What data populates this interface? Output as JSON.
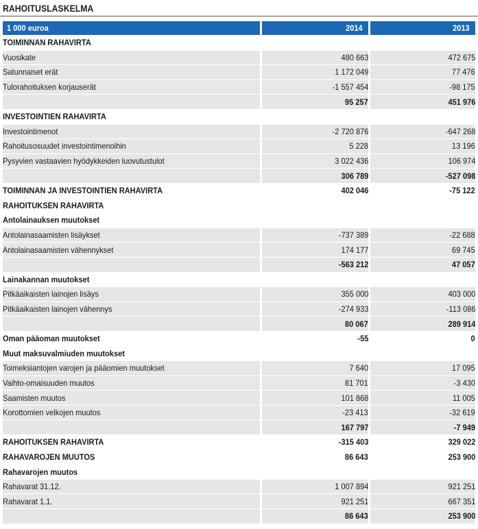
{
  "title": "RAHOITUSLASKELMA",
  "header": {
    "unit": "1 000 euroa",
    "col1": "2014",
    "col2": "2013"
  },
  "rows": [
    {
      "label": "TOIMINNAN RAHAVIRTA",
      "v2014": "",
      "v2013": "",
      "level": 0,
      "bold": true,
      "shaded": false
    },
    {
      "label": "Vuosikate",
      "v2014": "480 663",
      "v2013": "472 675",
      "level": 1,
      "bold": false,
      "shaded": true
    },
    {
      "label": "Satunnaiset erät",
      "v2014": "1 172 049",
      "v2013": "77 476",
      "level": 1,
      "bold": false,
      "shaded": true
    },
    {
      "label": "Tulorahoituksen korjauserät",
      "v2014": "-1 557 454",
      "v2013": "-98 175",
      "level": 1,
      "bold": false,
      "shaded": true
    },
    {
      "label": "",
      "v2014": "95 257",
      "v2013": "451 976",
      "level": 1,
      "bold": true,
      "shaded": true
    },
    {
      "label": "INVESTOINTIEN RAHAVIRTA",
      "v2014": "",
      "v2013": "",
      "level": 0,
      "bold": true,
      "shaded": false
    },
    {
      "label": "Investointimenot",
      "v2014": "-2 720 876",
      "v2013": "-647 268",
      "level": 1,
      "bold": false,
      "shaded": true
    },
    {
      "label": "Rahoitusosuudet investointimenoihin",
      "v2014": "5 228",
      "v2013": "13 196",
      "level": 1,
      "bold": false,
      "shaded": true
    },
    {
      "label": "Pysyvien vastaavien hyödykkeiden luovutustulot",
      "v2014": "3 022 436",
      "v2013": "106 974",
      "level": 1,
      "bold": false,
      "shaded": true
    },
    {
      "label": "",
      "v2014": "306 789",
      "v2013": "-527 098",
      "level": 1,
      "bold": true,
      "shaded": true
    },
    {
      "label": "TOIMINNAN JA INVESTOINTIEN RAHAVIRTA",
      "v2014": "402 046",
      "v2013": "-75 122",
      "level": 0,
      "bold": true,
      "shaded": false
    },
    {
      "label": "RAHOITUKSEN RAHAVIRTA",
      "v2014": "",
      "v2013": "",
      "level": 0,
      "bold": true,
      "shaded": false
    },
    {
      "label": "Antolainauksen muutokset",
      "v2014": "",
      "v2013": "",
      "level": 3,
      "bold": true,
      "shaded": false
    },
    {
      "label": "Antolainasaamisten lisäykset",
      "v2014": "-737 389",
      "v2013": "-22 688",
      "level": 2,
      "bold": false,
      "shaded": true
    },
    {
      "label": "Antolainasaamisten vähennykset",
      "v2014": "174 177",
      "v2013": "69 745",
      "level": 2,
      "bold": false,
      "shaded": true
    },
    {
      "label": "",
      "v2014": "-563 212",
      "v2013": "47 057",
      "level": 2,
      "bold": true,
      "shaded": true
    },
    {
      "label": "Lainakannan muutokset",
      "v2014": "",
      "v2013": "",
      "level": 3,
      "bold": true,
      "shaded": false
    },
    {
      "label": "Pitkäaikaisten lainojen lisäys",
      "v2014": "355 000",
      "v2013": "403 000",
      "level": 2,
      "bold": false,
      "shaded": true
    },
    {
      "label": "Pitkäaikaisten lainojen vähennys",
      "v2014": "-274 933",
      "v2013": "-113 086",
      "level": 2,
      "bold": false,
      "shaded": true
    },
    {
      "label": "",
      "v2014": "80 067",
      "v2013": "289 914",
      "level": 2,
      "bold": true,
      "shaded": true
    },
    {
      "label": "Oman pääoman muutokset",
      "v2014": "-55",
      "v2013": "0",
      "level": 3,
      "bold": true,
      "shaded": false
    },
    {
      "label": "Muut maksuvalmiuden muutokset",
      "v2014": "",
      "v2013": "",
      "level": 3,
      "bold": true,
      "shaded": false
    },
    {
      "label": "Toimeksiantojen varojen ja pääomien muutokset",
      "v2014": "7 640",
      "v2013": "17 095",
      "level": 2,
      "bold": false,
      "shaded": true
    },
    {
      "label": "Vaihto-omaisuuden muutos",
      "v2014": "81 701",
      "v2013": "-3 430",
      "level": 2,
      "bold": false,
      "shaded": true
    },
    {
      "label": "Saamisten muutos",
      "v2014": "101 868",
      "v2013": "11 005",
      "level": 2,
      "bold": false,
      "shaded": true
    },
    {
      "label": "Korottomien velkojen muutos",
      "v2014": "-23 413",
      "v2013": "-32 619",
      "level": 2,
      "bold": false,
      "shaded": true
    },
    {
      "label": "",
      "v2014": "167 797",
      "v2013": "-7 949",
      "level": 2,
      "bold": true,
      "shaded": true
    },
    {
      "label": "RAHOITUKSEN RAHAVIRTA",
      "v2014": "-315 403",
      "v2013": "329 022",
      "level": 0,
      "bold": true,
      "shaded": false
    },
    {
      "label": "RAHAVAROJEN MUUTOS",
      "v2014": "86 643",
      "v2013": "253 900",
      "level": 0,
      "bold": true,
      "shaded": false
    },
    {
      "label": "Rahavarojen muutos",
      "v2014": "",
      "v2013": "",
      "level": 3,
      "bold": true,
      "shaded": false
    },
    {
      "label": "Rahavarat 31.12.",
      "v2014": "1 007 894",
      "v2013": "921 251",
      "level": 2,
      "bold": false,
      "shaded": true
    },
    {
      "label": "Rahavarat 1.1.",
      "v2014": "921 251",
      "v2013": "667 351",
      "level": 2,
      "bold": false,
      "shaded": true
    },
    {
      "label": "",
      "v2014": "86 643",
      "v2013": "253 900",
      "level": 2,
      "bold": true,
      "shaded": true
    }
  ]
}
